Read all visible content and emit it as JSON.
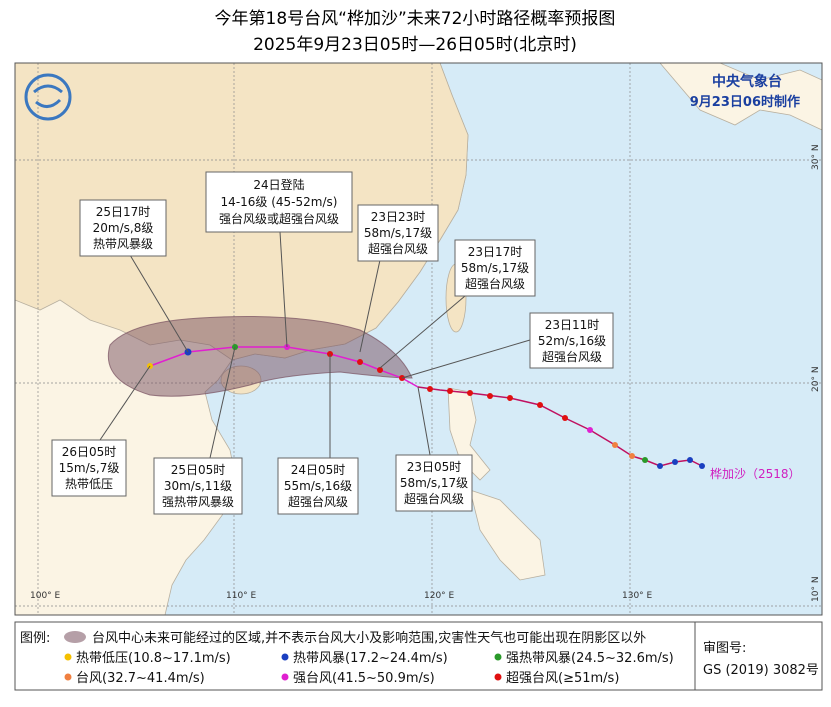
{
  "header": {
    "title": "今年第18号台风“桦加沙”未来72小时路径概率预报图",
    "subtitle": "2025年9月23日05时—26日05时(北京时)"
  },
  "agency": {
    "name": "中央气象台",
    "issued": "9月23日06时制作"
  },
  "storm_label": "桦加沙（2518）",
  "callouts": [
    {
      "lines": [
        "25日17时",
        "20m/s,8级",
        "热带风暴级"
      ]
    },
    {
      "lines": [
        "24日登陆",
        "14-16级 (45-52m/s)",
        "强台风级或超强台风级"
      ]
    },
    {
      "lines": [
        "23日23时",
        "58m/s,17级",
        "超强台风级"
      ]
    },
    {
      "lines": [
        "23日17时",
        "58m/s,17级",
        "超强台风级"
      ]
    },
    {
      "lines": [
        "23日11时",
        "52m/s,16级",
        "超强台风级"
      ]
    },
    {
      "lines": [
        "23日05时",
        "58m/s,17级",
        "超强台风级"
      ]
    },
    {
      "lines": [
        "24日05时",
        "55m/s,16级",
        "超强台风级"
      ]
    },
    {
      "lines": [
        "25日05时",
        "30m/s,11级",
        "强热带风暴级"
      ]
    },
    {
      "lines": [
        "26日05时",
        "15m/s,7级",
        "热带低压"
      ]
    }
  ],
  "axes": {
    "longitudes": [
      "100° E",
      "110° E",
      "120° E",
      "130° E"
    ],
    "latitudes": [
      "10° N",
      "20° N",
      "30° N"
    ]
  },
  "legend": {
    "title": "图例:",
    "cone": "台风中心未来可能经过的区域,并不表示台风大小及影响范围,灾害性天气也可能出现在阴影区以外",
    "items": [
      "热带低压(10.8~17.1m/s)",
      "热带风暴(17.2~24.4m/s)",
      "强热带风暴(24.5~32.6m/s)",
      "台风(32.7~41.4m/s)",
      "强台风(41.5~50.9m/s)",
      "超强台风(≥51m/s)"
    ]
  },
  "approval": {
    "label": "审图号:",
    "number": "GS (2019) 3082号"
  }
}
